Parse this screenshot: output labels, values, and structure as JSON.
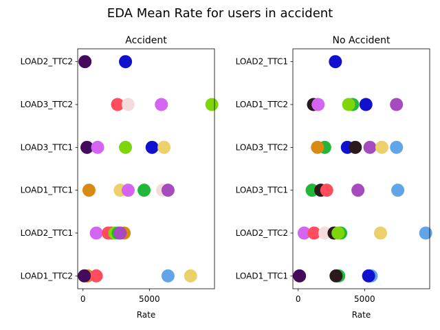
{
  "figure": {
    "title": "EDA Mean Rate for users in accident"
  },
  "chart_data": [
    {
      "type": "scatter",
      "title": "Accident",
      "xlabel": "Rate",
      "ylabel": "",
      "xlim": [
        -400,
        9900
      ],
      "xticks": [
        0,
        5000
      ],
      "categories": [
        "LOAD1_TTC2",
        "LOAD2_TTC1",
        "LOAD1_TTC1",
        "LOAD3_TTC1",
        "LOAD3_TTC2",
        "LOAD2_TTC2"
      ],
      "grid": false,
      "points": [
        {
          "category": "LOAD2_TTC2",
          "x": 150,
          "color": "#440a5c"
        },
        {
          "category": "LOAD2_TTC2",
          "x": 3200,
          "color": "#1010cf"
        },
        {
          "category": "LOAD3_TTC2",
          "x": 2600,
          "color": "#ff4d5e"
        },
        {
          "category": "LOAD3_TTC2",
          "x": 3400,
          "color": "#f5dcdc"
        },
        {
          "category": "LOAD3_TTC2",
          "x": 5900,
          "color": "#d564f2"
        },
        {
          "category": "LOAD3_TTC2",
          "x": 9700,
          "color": "#7ed60a"
        },
        {
          "category": "LOAD3_TTC1",
          "x": 300,
          "color": "#440a5c"
        },
        {
          "category": "LOAD3_TTC1",
          "x": 1100,
          "color": "#d564f2"
        },
        {
          "category": "LOAD3_TTC1",
          "x": 3200,
          "color": "#7ed60a"
        },
        {
          "category": "LOAD3_TTC1",
          "x": 5200,
          "color": "#1010cf"
        },
        {
          "category": "LOAD3_TTC1",
          "x": 6100,
          "color": "#ecd06a"
        },
        {
          "category": "LOAD1_TTC1",
          "x": 450,
          "color": "#d88a12"
        },
        {
          "category": "LOAD1_TTC1",
          "x": 2800,
          "color": "#ecd06a"
        },
        {
          "category": "LOAD1_TTC1",
          "x": 3400,
          "color": "#d564f2"
        },
        {
          "category": "LOAD1_TTC1",
          "x": 4600,
          "color": "#21b83a"
        },
        {
          "category": "LOAD1_TTC1",
          "x": 6000,
          "color": "#f5dcdc"
        },
        {
          "category": "LOAD1_TTC1",
          "x": 6400,
          "color": "#a54bbf"
        },
        {
          "category": "LOAD2_TTC1",
          "x": 1000,
          "color": "#d564f2"
        },
        {
          "category": "LOAD2_TTC1",
          "x": 1900,
          "color": "#ff4d5e"
        },
        {
          "category": "LOAD2_TTC1",
          "x": 2150,
          "color": "#ff4d5e"
        },
        {
          "category": "LOAD2_TTC1",
          "x": 2400,
          "color": "#7ed60a"
        },
        {
          "category": "LOAD2_TTC1",
          "x": 2650,
          "color": "#21b83a"
        },
        {
          "category": "LOAD2_TTC1",
          "x": 3100,
          "color": "#d88a12"
        },
        {
          "category": "LOAD2_TTC1",
          "x": 2800,
          "color": "#a54bbf"
        },
        {
          "category": "LOAD1_TTC2",
          "x": 350,
          "color": "#d88a12"
        },
        {
          "category": "LOAD1_TTC2",
          "x": 1000,
          "color": "#ff4d5e"
        },
        {
          "category": "LOAD1_TTC2",
          "x": 100,
          "color": "#440a5c"
        },
        {
          "category": "LOAD1_TTC2",
          "x": 6400,
          "color": "#62a4e8"
        },
        {
          "category": "LOAD1_TTC2",
          "x": 8100,
          "color": "#ecd06a"
        }
      ]
    },
    {
      "type": "scatter",
      "title": "No Accident",
      "xlabel": "Rate",
      "ylabel": "",
      "xlim": [
        -400,
        9900
      ],
      "xticks": [
        0,
        5000
      ],
      "categories": [
        "LOAD1_TTC1",
        "LOAD2_TTC2",
        "LOAD3_TTC1",
        "LOAD3_TTC2",
        "LOAD1_TTC2",
        "LOAD2_TTC1"
      ],
      "grid": false,
      "points": [
        {
          "category": "LOAD2_TTC1",
          "x": 2800,
          "color": "#1010cf"
        },
        {
          "category": "LOAD1_TTC2",
          "x": 1150,
          "color": "#2a1a1e"
        },
        {
          "category": "LOAD1_TTC2",
          "x": 1500,
          "color": "#d564f2"
        },
        {
          "category": "LOAD1_TTC2",
          "x": 4100,
          "color": "#21b83a"
        },
        {
          "category": "LOAD1_TTC2",
          "x": 3800,
          "color": "#7ed60a"
        },
        {
          "category": "LOAD1_TTC2",
          "x": 5100,
          "color": "#1010cf"
        },
        {
          "category": "LOAD1_TTC2",
          "x": 7400,
          "color": "#a54bbf"
        },
        {
          "category": "LOAD3_TTC2",
          "x": 2000,
          "color": "#21b83a"
        },
        {
          "category": "LOAD3_TTC2",
          "x": 1450,
          "color": "#d88a12"
        },
        {
          "category": "LOAD3_TTC2",
          "x": 3700,
          "color": "#1010cf"
        },
        {
          "category": "LOAD3_TTC2",
          "x": 4300,
          "color": "#2a1a1e"
        },
        {
          "category": "LOAD3_TTC2",
          "x": 5400,
          "color": "#a54bbf"
        },
        {
          "category": "LOAD3_TTC2",
          "x": 6300,
          "color": "#ecd06a"
        },
        {
          "category": "LOAD3_TTC2",
          "x": 7400,
          "color": "#62a4e8"
        },
        {
          "category": "LOAD3_TTC1",
          "x": 1050,
          "color": "#21b83a"
        },
        {
          "category": "LOAD3_TTC1",
          "x": 1700,
          "color": "#2a1a1e"
        },
        {
          "category": "LOAD3_TTC1",
          "x": 2150,
          "color": "#ff4d5e"
        },
        {
          "category": "LOAD3_TTC1",
          "x": 4500,
          "color": "#a54bbf"
        },
        {
          "category": "LOAD3_TTC1",
          "x": 7500,
          "color": "#62a4e8"
        },
        {
          "category": "LOAD2_TTC2",
          "x": 450,
          "color": "#d564f2"
        },
        {
          "category": "LOAD2_TTC2",
          "x": 1200,
          "color": "#ff4d5e"
        },
        {
          "category": "LOAD2_TTC2",
          "x": 2000,
          "color": "#f5dcdc"
        },
        {
          "category": "LOAD2_TTC2",
          "x": 2700,
          "color": "#2a1a1e"
        },
        {
          "category": "LOAD2_TTC2",
          "x": 3200,
          "color": "#21b83a"
        },
        {
          "category": "LOAD2_TTC2",
          "x": 3000,
          "color": "#7ed60a"
        },
        {
          "category": "LOAD2_TTC2",
          "x": 6200,
          "color": "#ecd06a"
        },
        {
          "category": "LOAD2_TTC2",
          "x": 9600,
          "color": "#62a4e8"
        },
        {
          "category": "LOAD1_TTC1",
          "x": 100,
          "color": "#440a5c"
        },
        {
          "category": "LOAD1_TTC1",
          "x": 3050,
          "color": "#21b83a"
        },
        {
          "category": "LOAD1_TTC1",
          "x": 2850,
          "color": "#2a1a1e"
        },
        {
          "category": "LOAD1_TTC1",
          "x": 5500,
          "color": "#62a4e8"
        },
        {
          "category": "LOAD1_TTC1",
          "x": 5300,
          "color": "#1010cf"
        }
      ]
    }
  ]
}
